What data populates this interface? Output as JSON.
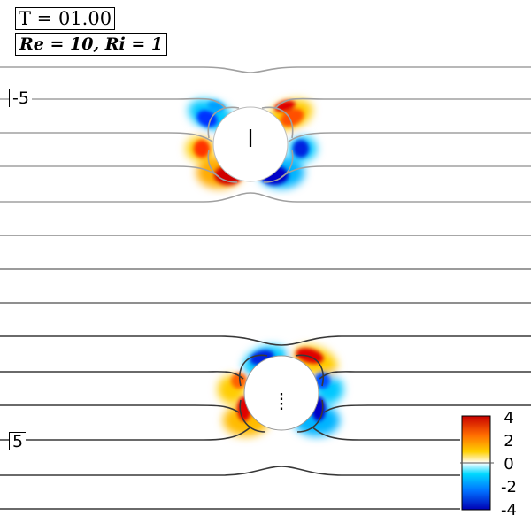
{
  "time_label": "T = 01.00",
  "params_label": "Re = 10, Ri = 1",
  "markers": {
    "top": "-5",
    "bottom": "5"
  },
  "colorbar": {
    "ticks": [
      "4",
      "2",
      "0",
      "-2",
      "-4"
    ],
    "range": [
      -4,
      4
    ],
    "colors": [
      "#0000b4",
      "#0070ff",
      "#00d8ff",
      "#ffffff",
      "#ffd000",
      "#ff6a00",
      "#c80000"
    ]
  },
  "cylinders": [
    {
      "name": "upper",
      "mark": "solid",
      "streamline_color": "#a0a0a0"
    },
    {
      "name": "lower",
      "mark": "dotted",
      "streamline_color": "#383838"
    }
  ]
}
